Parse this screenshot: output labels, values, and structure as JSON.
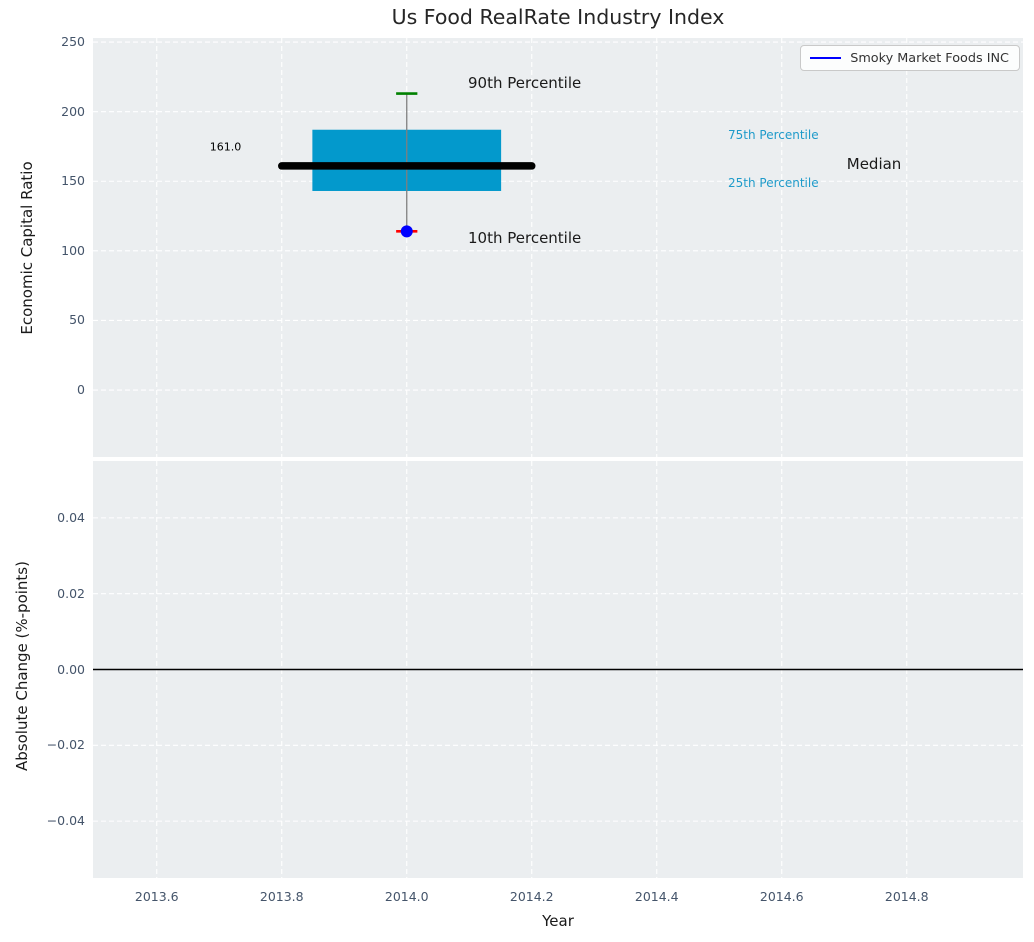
{
  "title": "Us Food RealRate Industry Index",
  "legend": {
    "label": "Smoky Market Foods INC",
    "line_color": "#0000ff"
  },
  "colors": {
    "plot_bg": "#ebeef0",
    "grid": "#ffffff",
    "tick_label": "#44546a",
    "axis_text": "#1a1a1a",
    "box_fill": "#0399cc",
    "median_line": "#000000",
    "whisker": "#7f7f7f",
    "cap_top": "#008000",
    "cap_bottom": "#ff0000",
    "marker": "#0000ff",
    "percentile_text": "#1f9bca",
    "zero_line": "#000000"
  },
  "chart_data": [
    {
      "type": "box",
      "title": "Us Food RealRate Industry Index",
      "ylabel": "Economic Capital Ratio",
      "xlim": [
        2013.498,
        2014.986
      ],
      "ylim": [
        -48.1,
        252.9
      ],
      "grid": true,
      "legend_position": "upper right",
      "yticks": [
        0,
        50,
        100,
        150,
        200,
        250
      ],
      "ytick_labels": [
        "0",
        "50",
        "100",
        "150",
        "200",
        "250"
      ],
      "xticks": [
        2013.6,
        2013.8,
        2014.0,
        2014.2,
        2014.4,
        2014.6,
        2014.8
      ],
      "box": {
        "x": 2014.0,
        "p10": 114,
        "p25": 143,
        "median": 161.0,
        "p75": 187,
        "p90": 213,
        "box_half_width": 0.151,
        "median_half_width": 0.2,
        "cap_half_width": 0.017,
        "marker_radius": 6
      },
      "annotations": [
        {
          "text": "90th Percentile",
          "x": 2014.098,
          "y": 220.5,
          "size": 15,
          "color": "#1a1a1a",
          "align": "left"
        },
        {
          "text": "10th Percentile",
          "x": 2014.098,
          "y": 109.2,
          "size": 15,
          "color": "#1a1a1a",
          "align": "left"
        },
        {
          "text": "161.0",
          "x": 2013.71,
          "y": 174.6,
          "size": 11,
          "color": "#000000",
          "align": "center"
        },
        {
          "text": "75th Percentile",
          "x": 2014.514,
          "y": 183.2,
          "size": 12,
          "color": "#1f9bca",
          "align": "left"
        },
        {
          "text": "25th Percentile",
          "x": 2014.514,
          "y": 148.7,
          "size": 12,
          "color": "#1f9bca",
          "align": "left"
        },
        {
          "text": "Median",
          "x": 2014.704,
          "y": 162.4,
          "size": 15,
          "color": "#1a1a1a",
          "align": "left"
        }
      ]
    },
    {
      "type": "line",
      "ylabel": "Absolute Change (%-points)",
      "xlabel": "Year",
      "xlim": [
        2013.498,
        2014.986
      ],
      "ylim": [
        -0.055,
        0.055
      ],
      "grid": true,
      "zero_line": 0.0,
      "yticks": [
        0.04,
        0.02,
        0.0,
        -0.02,
        -0.04
      ],
      "ytick_labels": [
        "0.04",
        "0.02",
        "0.00",
        "−0.02",
        "−0.04"
      ],
      "xticks": [
        2013.6,
        2013.8,
        2014.0,
        2014.2,
        2014.4,
        2014.6,
        2014.8
      ],
      "xtick_labels": [
        "2013.6",
        "2013.8",
        "2014.0",
        "2014.2",
        "2014.4",
        "2014.6",
        "2014.8"
      ],
      "series": []
    }
  ]
}
